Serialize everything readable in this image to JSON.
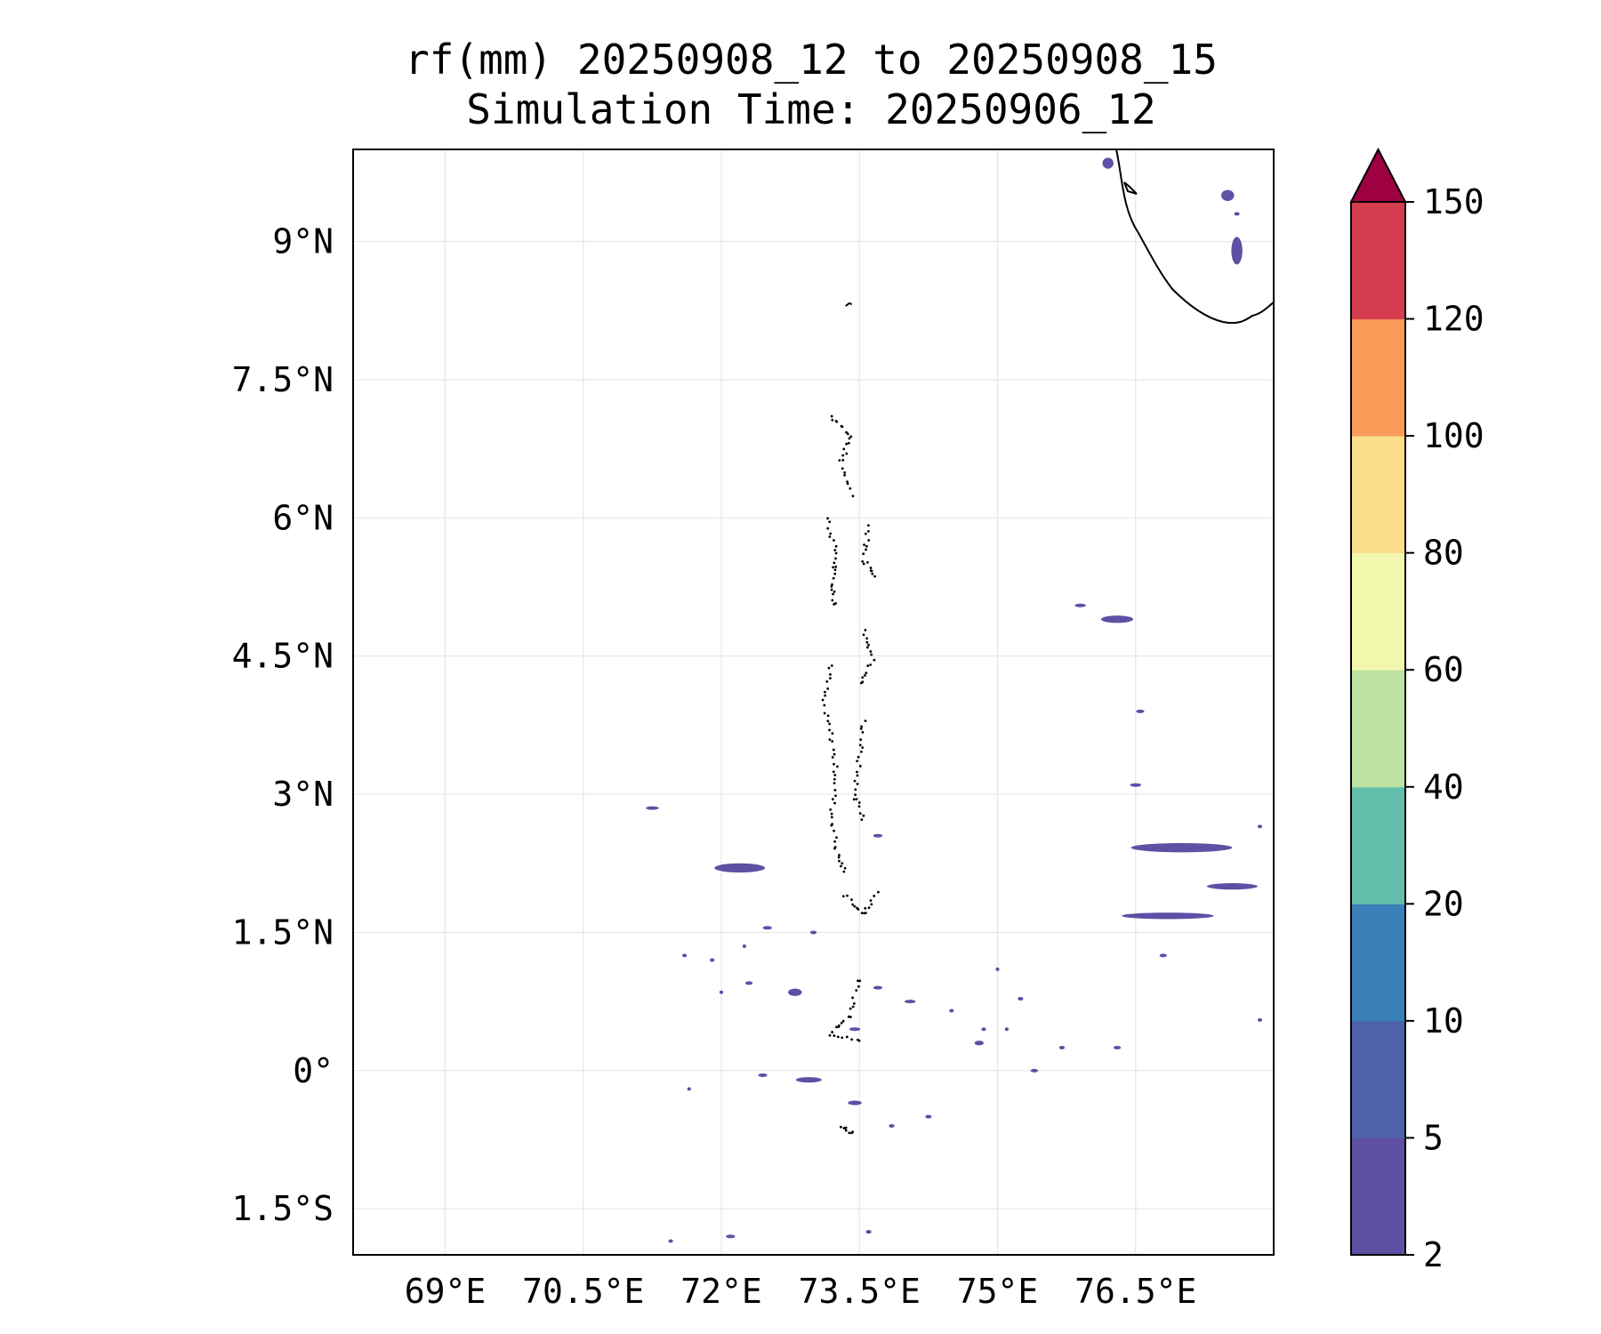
{
  "title": {
    "line1": "rf(mm) 20250908_12 to 20250908_15",
    "line2": "Simulation Time: 20250906_12"
  },
  "map": {
    "lon_range": [
      68,
      78
    ],
    "lat_range": [
      -2,
      10
    ],
    "lon_ticks": [
      {
        "value": 69,
        "label": "69°E"
      },
      {
        "value": 70.5,
        "label": "70.5°E"
      },
      {
        "value": 72,
        "label": "72°E"
      },
      {
        "value": 73.5,
        "label": "73.5°E"
      },
      {
        "value": 75,
        "label": "75°E"
      },
      {
        "value": 76.5,
        "label": "76.5°E"
      }
    ],
    "lat_ticks": [
      {
        "value": 9,
        "label": "9°N"
      },
      {
        "value": 7.5,
        "label": "7.5°N"
      },
      {
        "value": 6,
        "label": "6°N"
      },
      {
        "value": 4.5,
        "label": "4.5°N"
      },
      {
        "value": 3,
        "label": "3°N"
      },
      {
        "value": 1.5,
        "label": "1.5°N"
      },
      {
        "value": 0,
        "label": "0°"
      },
      {
        "value": -1.5,
        "label": "1.5°S"
      }
    ],
    "grid": true
  },
  "colorbar": {
    "extend": "max",
    "extend_color": "#9e0142",
    "levels": [
      {
        "value": 2,
        "label": "2"
      },
      {
        "value": 5,
        "label": "5"
      },
      {
        "value": 10,
        "label": "10"
      },
      {
        "value": 20,
        "label": "20"
      },
      {
        "value": 40,
        "label": "40"
      },
      {
        "value": 60,
        "label": "60"
      },
      {
        "value": 80,
        "label": "80"
      },
      {
        "value": 100,
        "label": "100"
      },
      {
        "value": 120,
        "label": "120"
      },
      {
        "value": 150,
        "label": "150"
      }
    ],
    "colors": [
      "#5e4fa2",
      "#4f61ab",
      "#3a7fb8",
      "#63bfab",
      "#bde4a0",
      "#f1f7ad",
      "#fbdd8c",
      "#f99c5a",
      "#d43d4f"
    ]
  },
  "chart_data": {
    "type": "map",
    "variable": "rf(mm)",
    "rain_color": "#5f4fa5",
    "rain_areas": [
      {
        "lon": 72.2,
        "lat": 2.2,
        "dlon": 0.55,
        "dlat": 0.1
      },
      {
        "lon": 77.0,
        "lat": 2.42,
        "dlon": 1.1,
        "dlat": 0.1
      },
      {
        "lon": 77.55,
        "lat": 2.0,
        "dlon": 0.55,
        "dlat": 0.07
      },
      {
        "lon": 76.85,
        "lat": 1.68,
        "dlon": 1.0,
        "dlat": 0.07
      },
      {
        "lon": 76.3,
        "lat": 4.9,
        "dlon": 0.35,
        "dlat": 0.08
      },
      {
        "lon": 75.9,
        "lat": 5.05,
        "dlon": 0.12,
        "dlat": 0.03
      },
      {
        "lon": 77.5,
        "lat": 9.5,
        "dlon": 0.14,
        "dlat": 0.12
      },
      {
        "lon": 77.6,
        "lat": 8.9,
        "dlon": 0.12,
        "dlat": 0.3
      },
      {
        "lon": 76.2,
        "lat": 9.85,
        "dlon": 0.12,
        "dlat": 0.12
      },
      {
        "lon": 72.8,
        "lat": 0.85,
        "dlon": 0.15,
        "dlat": 0.08
      },
      {
        "lon": 72.95,
        "lat": -0.1,
        "dlon": 0.28,
        "dlat": 0.06
      },
      {
        "lon": 74.8,
        "lat": 0.3,
        "dlon": 0.1,
        "dlat": 0.05
      },
      {
        "lon": 73.45,
        "lat": -0.35,
        "dlon": 0.15,
        "dlat": 0.05
      },
      {
        "lon": 71.25,
        "lat": 2.85,
        "dlon": 0.14,
        "dlat": 0.03
      },
      {
        "lon": 76.5,
        "lat": 3.1,
        "dlon": 0.12,
        "dlat": 0.03
      },
      {
        "lon": 76.55,
        "lat": 3.9,
        "dlon": 0.09,
        "dlat": 0.03
      },
      {
        "lon": 72.1,
        "lat": -1.8,
        "dlon": 0.1,
        "dlat": 0.03
      },
      {
        "lon": 73.6,
        "lat": -1.75,
        "dlon": 0.06,
        "dlat": 0.04
      },
      {
        "lon": 74.05,
        "lat": 0.75,
        "dlon": 0.12,
        "dlat": 0.03
      },
      {
        "lon": 73.7,
        "lat": 0.9,
        "dlon": 0.1,
        "dlat": 0.02
      },
      {
        "lon": 74.25,
        "lat": -0.5,
        "dlon": 0.07,
        "dlat": 0.03
      },
      {
        "lon": 73.7,
        "lat": 2.55,
        "dlon": 0.1,
        "dlat": 0.02
      },
      {
        "lon": 72.5,
        "lat": 1.55,
        "dlon": 0.1,
        "dlat": 0.02
      },
      {
        "lon": 72.45,
        "lat": -0.05,
        "dlon": 0.1,
        "dlat": 0.03
      },
      {
        "lon": 73.0,
        "lat": 1.5,
        "dlon": 0.07,
        "dlat": 0.02
      },
      {
        "lon": 71.9,
        "lat": 1.2,
        "dlon": 0.05,
        "dlat": 0.02
      },
      {
        "lon": 75.4,
        "lat": 0.0,
        "dlon": 0.08,
        "dlat": 0.03
      },
      {
        "lon": 76.3,
        "lat": 0.25,
        "dlon": 0.08,
        "dlat": 0.02
      },
      {
        "lon": 75.7,
        "lat": 0.25,
        "dlon": 0.06,
        "dlat": 0.02
      },
      {
        "lon": 77.85,
        "lat": 0.55,
        "dlon": 0.05,
        "dlat": 0.02
      },
      {
        "lon": 77.85,
        "lat": 2.65,
        "dlon": 0.05,
        "dlat": 0.02
      },
      {
        "lon": 76.8,
        "lat": 1.25,
        "dlon": 0.08,
        "dlat": 0.02
      },
      {
        "lon": 72.3,
        "lat": 0.95,
        "dlon": 0.08,
        "dlat": 0.02
      },
      {
        "lon": 72.0,
        "lat": 0.85,
        "dlon": 0.04,
        "dlat": 0.02
      },
      {
        "lon": 72.25,
        "lat": 1.35,
        "dlon": 0.04,
        "dlat": 0.02
      },
      {
        "lon": 75.25,
        "lat": 0.78,
        "dlon": 0.06,
        "dlat": 0.02
      },
      {
        "lon": 74.85,
        "lat": 0.45,
        "dlon": 0.05,
        "dlat": 0.02
      },
      {
        "lon": 74.5,
        "lat": 0.65,
        "dlon": 0.05,
        "dlat": 0.02
      },
      {
        "lon": 75.1,
        "lat": 0.45,
        "dlon": 0.04,
        "dlat": 0.02
      },
      {
        "lon": 71.6,
        "lat": 1.25,
        "dlon": 0.05,
        "dlat": 0.02
      },
      {
        "lon": 71.65,
        "lat": -0.2,
        "dlon": 0.04,
        "dlat": 0.02
      },
      {
        "lon": 73.85,
        "lat": -0.6,
        "dlon": 0.06,
        "dlat": 0.02
      },
      {
        "lon": 71.45,
        "lat": -1.85,
        "dlon": 0.05,
        "dlat": 0.03
      },
      {
        "lon": 75.0,
        "lat": 1.1,
        "dlon": 0.04,
        "dlat": 0.02
      },
      {
        "lon": 73.45,
        "lat": 0.45,
        "dlon": 0.12,
        "dlat": 0.02
      },
      {
        "lon": 77.6,
        "lat": 9.3,
        "dlon": 0.06,
        "dlat": 0.03
      }
    ]
  }
}
